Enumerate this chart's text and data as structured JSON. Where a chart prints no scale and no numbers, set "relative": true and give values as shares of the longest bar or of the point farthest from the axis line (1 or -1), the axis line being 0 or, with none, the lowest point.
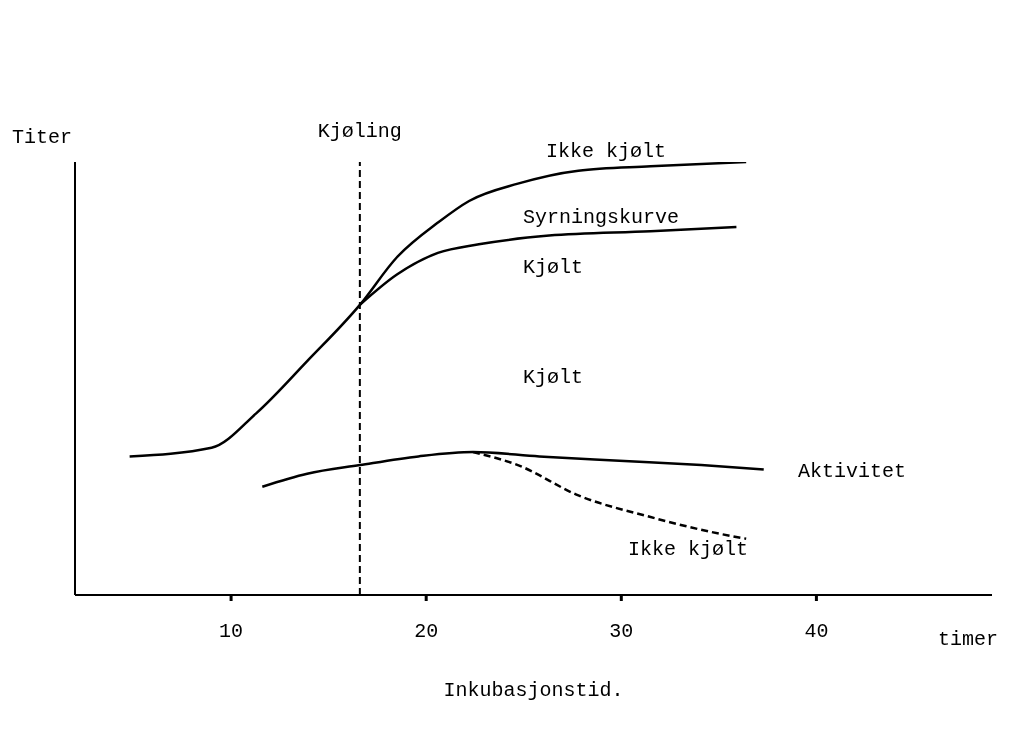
{
  "chart_data": {
    "type": "line",
    "relative": true,
    "ylabel": "Titer",
    "xlabel": "Inkubasjonstid.",
    "xlim": [
      2,
      49
    ],
    "xticks": [
      10,
      20,
      30,
      40
    ],
    "marker": "none",
    "series": [
      {
        "color": "#000000",
        "line_style": "solid",
        "x": [
          4.8,
          9.0,
          11.3,
          13.9,
          16.6,
          18.5,
          20.6,
          22.2,
          24.7,
          27.8,
          31.5,
          36.4
        ],
        "values": [
          0.32,
          0.34,
          0.42,
          0.54,
          0.67,
          0.78,
          0.86,
          0.91,
          0.95,
          0.98,
          0.99,
          1.0
        ]
      },
      {
        "color": "#000000",
        "line_style": "solid",
        "x": [
          16.6,
          18.5,
          20.6,
          22.7,
          26.3,
          31.5,
          35.9
        ],
        "values": [
          0.67,
          0.74,
          0.79,
          0.81,
          0.83,
          0.84,
          0.85
        ]
      },
      {
        "color": "#000000",
        "line_style": "solid",
        "x": [
          11.6,
          13.9,
          16.6,
          19.6,
          22.4,
          25.8,
          29.9,
          34.1,
          37.3
        ],
        "values": [
          0.25,
          0.28,
          0.3,
          0.32,
          0.33,
          0.32,
          0.31,
          0.3,
          0.29
        ]
      },
      {
        "color": "#000000",
        "line_style": "dashed",
        "x": [
          22.4,
          24.7,
          27.8,
          31.5,
          35.2,
          36.4
        ],
        "values": [
          0.33,
          0.3,
          0.23,
          0.18,
          0.14,
          0.13
        ]
      }
    ],
    "ref_lines": [
      {
        "axis": "x",
        "value": 16.6,
        "label": "Kjøling",
        "line_style": "dashed",
        "color": "#000000"
      }
    ],
    "annotations": [
      "Ikke kjølt",
      "Syrningskurve",
      "Kjølt",
      "Kjølt",
      "Aktivitet",
      "Ikke kjølt",
      "timer"
    ]
  }
}
